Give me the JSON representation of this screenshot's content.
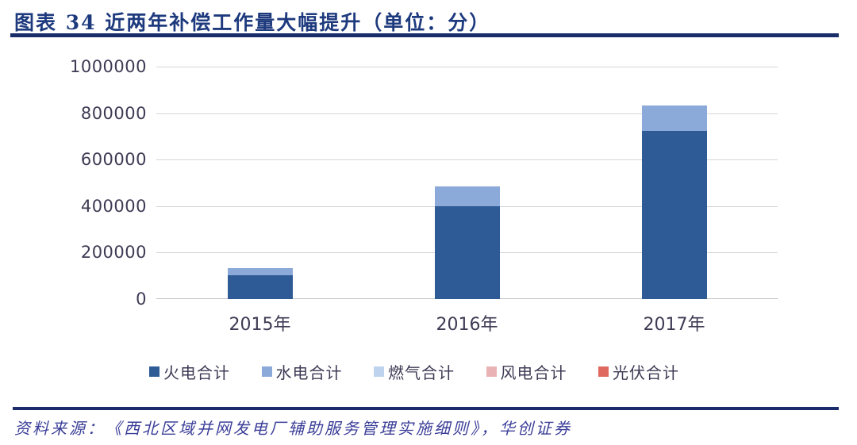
{
  "page": {
    "title": "图表 34  近两年补偿工作量大幅提升（单位：分）",
    "source": "资料来源：《西北区域并网发电厂辅助服务管理实施细则》，华创证券"
  },
  "colors": {
    "title_text": "#1e3a7e",
    "rule": "#1a2d6b",
    "axis_text": "#3e3b54",
    "source_text": "#3b3e98",
    "gridline": "#d6d6d6",
    "baseline": "#c6c6c6"
  },
  "chart_data": {
    "type": "bar",
    "stacked": true,
    "title": "近两年补偿工作量大幅提升",
    "unit": "分",
    "categories": [
      "2015年",
      "2016年",
      "2017年"
    ],
    "series": [
      {
        "name": "火电合计",
        "color": "#2e5b95",
        "values": [
          102000,
          401000,
          724000
        ]
      },
      {
        "name": "水电合计",
        "color": "#8caad9",
        "values": [
          30000,
          85000,
          108000
        ]
      },
      {
        "name": "燃气合计",
        "color": "#bed3ed",
        "values": [
          0,
          0,
          0
        ]
      },
      {
        "name": "风电合计",
        "color": "#e9b3b5",
        "values": [
          0,
          0,
          0
        ]
      },
      {
        "name": "光伏合计",
        "color": "#e0695f",
        "values": [
          0,
          0,
          0
        ]
      }
    ],
    "totals": [
      132000,
      486000,
      832000
    ],
    "ylim": [
      0,
      1000000
    ],
    "yticks": [
      0,
      200000,
      400000,
      600000,
      800000,
      1000000
    ],
    "grid": true,
    "legend_position": "bottom"
  }
}
